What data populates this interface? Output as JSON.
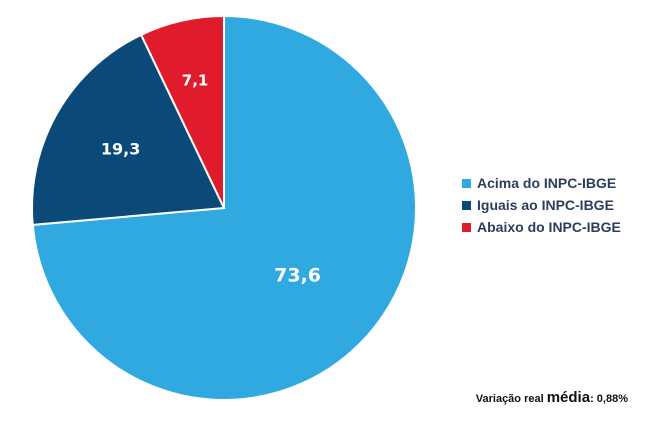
{
  "chart_data": {
    "type": "pie",
    "categories": [
      "Acima do INPC-IBGE",
      "Iguais ao INPC-IBGE",
      "Abaixo do INPC-IBGE"
    ],
    "values": [
      73.6,
      19.3,
      7.1
    ],
    "data_labels": [
      "73,6",
      "19,3",
      "7,1"
    ],
    "colors": [
      "#2FA9E0",
      "#0B4A78",
      "#E01B2C"
    ],
    "legend_position": "right",
    "title": "",
    "start": "12 o'clock, clockwise"
  },
  "footnote": {
    "prefix": "Variação real ",
    "emphasis": "média",
    "suffix": ": 0,88%"
  }
}
